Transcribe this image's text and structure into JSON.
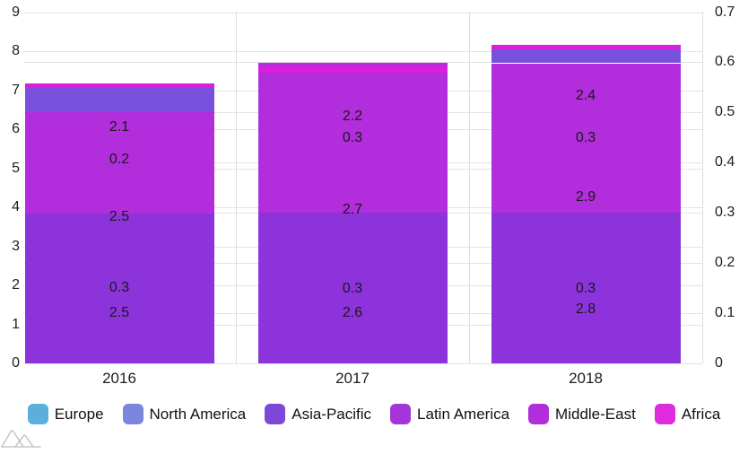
{
  "chart_data": {
    "type": "bar",
    "stacked": true,
    "title": "",
    "xlabel": "",
    "ylabel": "",
    "categories": [
      "2016",
      "2017",
      "2018"
    ],
    "left_axis": {
      "min": 0,
      "max": 9,
      "ticks": [
        0,
        1,
        2,
        3,
        4,
        5,
        6,
        7,
        8,
        9
      ]
    },
    "right_axis": {
      "min": 0,
      "max": 0.7,
      "ticks": [
        "0",
        "0.1",
        "0.2",
        "0.3",
        "0.4",
        "0.5",
        "0.6",
        "0.7"
      ]
    },
    "grid": true,
    "legend_position": "bottom",
    "legend": [
      {
        "label": "Europe",
        "color": "#5CAFDC"
      },
      {
        "label": "North America",
        "color": "#7B86DC"
      },
      {
        "label": "Asia-Pacific",
        "color": "#7D48DA"
      },
      {
        "label": "Latin America",
        "color": "#A335DA"
      },
      {
        "label": "Middle-East",
        "color": "#B02FDB"
      },
      {
        "label": "Africa",
        "color": "#DF2BDF"
      }
    ],
    "series": [
      {
        "name": "Europe",
        "axis": "left",
        "stack": "left",
        "color": "#5CAFDC",
        "values": [
          2.5,
          2.6,
          2.8
        ]
      },
      {
        "name": "North America",
        "axis": "left",
        "stack": "left",
        "color": "#7B86DC",
        "values": [
          2.5,
          2.7,
          2.9
        ]
      },
      {
        "name": "Asia-Pacific",
        "axis": "left",
        "stack": "left",
        "color": "#7D48DA",
        "values": [
          2.1,
          2.2,
          2.4
        ]
      },
      {
        "name": "Latin America",
        "axis": "right",
        "stack": "right",
        "color": "#A335DA",
        "values": [
          0.3,
          0.3,
          0.3
        ]
      },
      {
        "name": "Middle-East",
        "axis": "right",
        "stack": "right",
        "color": "#B02FDB",
        "values": [
          0.2,
          0.3,
          0.3
        ]
      },
      {
        "name": "Africa",
        "axis": "left",
        "stack": "left",
        "color": "#DF2BDF",
        "values": [
          0.1,
          0.1,
          0.1
        ]
      }
    ],
    "rendered_bars": [
      {
        "category": "2016",
        "segments": [
          {
            "from": 0,
            "to": 3.84,
            "color": "#8C33DB"
          },
          {
            "from": 3.84,
            "to": 6.43,
            "color": "#B22DDB"
          },
          {
            "from": 6.43,
            "to": 7.06,
            "color": "#7750DC"
          },
          {
            "from": 7.06,
            "to": 7.17,
            "color": "#DC1EDC"
          }
        ],
        "labels": [
          {
            "text": "2.5",
            "at": 1.29
          },
          {
            "text": "0.3",
            "at": 1.95
          },
          {
            "text": "2.5",
            "at": 3.76
          },
          {
            "text": "0.2",
            "at": 5.22
          },
          {
            "text": "2.1",
            "at": 6.07
          }
        ]
      },
      {
        "category": "2017",
        "segments": [
          {
            "from": 0,
            "to": 3.86,
            "color": "#8C33DB"
          },
          {
            "from": 3.86,
            "to": 7.45,
            "color": "#B22DDB"
          },
          {
            "from": 7.45,
            "to": 7.61,
            "color": "#DC1EDC"
          },
          {
            "from": 7.61,
            "to": 7.7,
            "color": "#B22DDB"
          }
        ],
        "labels": [
          {
            "text": "2.6",
            "at": 1.3
          },
          {
            "text": "0.3",
            "at": 1.93
          },
          {
            "text": "2.7",
            "at": 3.95
          },
          {
            "text": "0.3",
            "at": 5.79
          },
          {
            "text": "2.2",
            "at": 6.33
          }
        ]
      },
      {
        "category": "2018",
        "segments": [
          {
            "from": 0,
            "to": 3.86,
            "color": "#8C33DB"
          },
          {
            "from": 3.86,
            "to": 7.69,
            "color": "#B22DDB"
          },
          {
            "from": 7.69,
            "to": 8.05,
            "color": "#7750DC"
          },
          {
            "from": 8.05,
            "to": 8.17,
            "color": "#DC1EDC"
          }
        ],
        "labels": [
          {
            "text": "2.8",
            "at": 1.4
          },
          {
            "text": "0.3",
            "at": 1.93
          },
          {
            "text": "2.9",
            "at": 4.27
          },
          {
            "text": "0.3",
            "at": 5.79
          },
          {
            "text": "2.4",
            "at": 6.86
          }
        ]
      }
    ]
  },
  "watermark": {
    "name": "mountain-logo",
    "color": "#c8c8c8"
  }
}
